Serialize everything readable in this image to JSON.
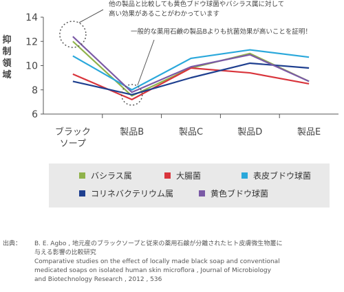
{
  "chart_data": {
    "type": "line",
    "ylabel": "抑制領域",
    "ylim": [
      6,
      14
    ],
    "yticks": [
      "6",
      "8",
      "10",
      "12",
      "14"
    ],
    "categories": [
      "ブラック\nソープ",
      "製品B",
      "製品C",
      "製品D",
      "製品E"
    ],
    "series": [
      {
        "name": "バシラス属",
        "color": "#8fb24a",
        "values": [
          12.0,
          7.5,
          9.8,
          11.0,
          8.7
        ]
      },
      {
        "name": "大腸菌",
        "color": "#d9353c",
        "values": [
          9.3,
          7.2,
          9.8,
          9.4,
          8.5
        ]
      },
      {
        "name": "表皮ブドウ球菌",
        "color": "#2aa8db",
        "values": [
          10.8,
          8.0,
          10.6,
          11.3,
          10.7
        ]
      },
      {
        "name": "コリネバクテリウム属",
        "color": "#1e3f8f",
        "values": [
          8.7,
          7.6,
          9.0,
          10.2,
          9.8
        ]
      },
      {
        "name": "黄色ブドウ球菌",
        "color": "#7b5aa6",
        "values": [
          12.4,
          7.8,
          9.9,
          10.9,
          8.7
        ]
      }
    ],
    "annotations": [
      "他の製品と比較しても黄色ブドウ球菌やバシラス属に対して\n高い効果があることがわかっています",
      "一般的な薬用石鹸の製品Bよりも抗菌効果が高いことを証明！"
    ],
    "grid": false,
    "legend_position": "bottom"
  },
  "source": {
    "label": "出典：",
    "lines": [
      "B. E. Agbo , 地元産のブラックソープと従来の薬用石鹸が分離されたヒト皮膚微生物叢に",
      "与える影響の比較研究",
      "Comparative studies on the effect of locally made black soap and conventional",
      "medicated soaps on isolated human skin microflora , Journal of Microbiology",
      "and Biotechnology Research , 2012 , 536"
    ]
  }
}
